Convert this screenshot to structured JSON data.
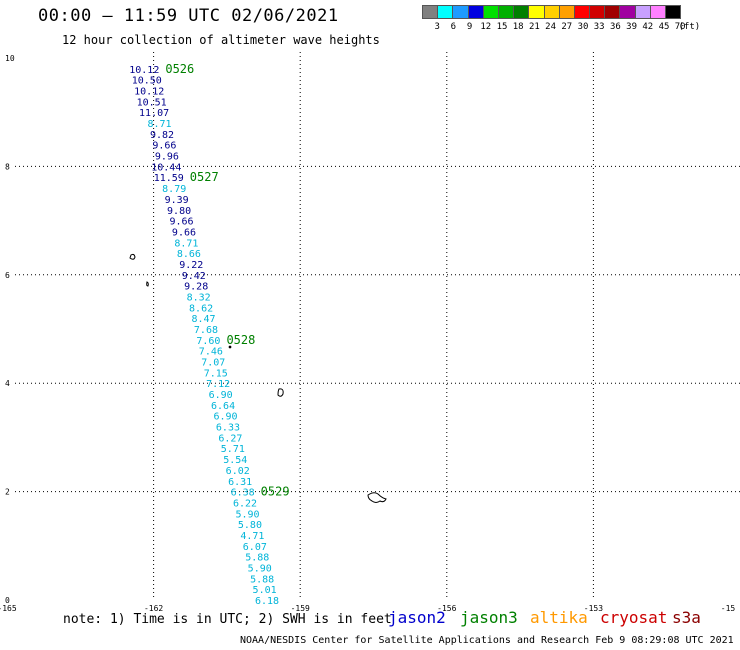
{
  "header": {
    "title": "00:00 – 11:59 UTC 02/06/2021",
    "subtitle": "12 hour collection of altimeter wave heights"
  },
  "colorbar": {
    "colors": [
      "#808080",
      "#00ffff",
      "#1e9bff",
      "#0000e0",
      "#00e000",
      "#00b000",
      "#008000",
      "#ffff00",
      "#ffd000",
      "#ffa000",
      "#ff0000",
      "#d00000",
      "#a00000",
      "#a000a0",
      "#c8a0ff",
      "#ff80ff",
      "#000000"
    ],
    "labels": [
      "3",
      "6",
      "9",
      "12",
      "15",
      "18",
      "21",
      "24",
      "27",
      "30",
      "33",
      "36",
      "39",
      "42",
      "45",
      "70",
      "(ft)"
    ]
  },
  "axes": {
    "x_ticks": [
      "-165",
      "-162",
      "-159",
      "-156",
      "-153",
      "-15"
    ],
    "y_ticks": [
      "0",
      "2",
      "4",
      "6",
      "8",
      "10"
    ]
  },
  "track": {
    "color_dark": "#00008b",
    "color_light": "#00b4d8",
    "points": [
      {
        "lon": -161.8,
        "lat": 9.8,
        "swh": "10.12",
        "shade": "dark"
      },
      {
        "lon": -161.75,
        "lat": 9.6,
        "swh": "10.50",
        "shade": "dark"
      },
      {
        "lon": -161.7,
        "lat": 9.4,
        "swh": "10.12",
        "shade": "dark"
      },
      {
        "lon": -161.65,
        "lat": 9.2,
        "swh": "10.51",
        "shade": "dark"
      },
      {
        "lon": -161.6,
        "lat": 9.0,
        "swh": "11.07",
        "shade": "dark"
      },
      {
        "lon": -161.55,
        "lat": 8.8,
        "swh": "8.71",
        "shade": "light"
      },
      {
        "lon": -161.5,
        "lat": 8.6,
        "swh": "9.82",
        "shade": "dark"
      },
      {
        "lon": -161.45,
        "lat": 8.4,
        "swh": "9.66",
        "shade": "dark"
      },
      {
        "lon": -161.4,
        "lat": 8.2,
        "swh": "9.96",
        "shade": "dark"
      },
      {
        "lon": -161.35,
        "lat": 8.0,
        "swh": "10.44",
        "shade": "dark"
      },
      {
        "lon": -161.3,
        "lat": 7.8,
        "swh": "11.59",
        "shade": "dark"
      },
      {
        "lon": -161.25,
        "lat": 7.6,
        "swh": "8.79",
        "shade": "light"
      },
      {
        "lon": -161.2,
        "lat": 7.4,
        "swh": "9.39",
        "shade": "dark"
      },
      {
        "lon": -161.15,
        "lat": 7.2,
        "swh": "9.80",
        "shade": "dark"
      },
      {
        "lon": -161.1,
        "lat": 7.0,
        "swh": "9.66",
        "shade": "dark"
      },
      {
        "lon": -161.05,
        "lat": 6.8,
        "swh": "9.66",
        "shade": "dark"
      },
      {
        "lon": -161.0,
        "lat": 6.6,
        "swh": "8.71",
        "shade": "light"
      },
      {
        "lon": -160.95,
        "lat": 6.4,
        "swh": "8.66",
        "shade": "light"
      },
      {
        "lon": -160.9,
        "lat": 6.2,
        "swh": "9.22",
        "shade": "dark"
      },
      {
        "lon": -160.85,
        "lat": 6.0,
        "swh": "9.42",
        "shade": "dark"
      },
      {
        "lon": -160.8,
        "lat": 5.8,
        "swh": "9.28",
        "shade": "dark"
      },
      {
        "lon": -160.75,
        "lat": 5.6,
        "swh": "8.32",
        "shade": "light"
      },
      {
        "lon": -160.7,
        "lat": 5.4,
        "swh": "8.62",
        "shade": "light"
      },
      {
        "lon": -160.65,
        "lat": 5.2,
        "swh": "8.47",
        "shade": "light"
      },
      {
        "lon": -160.6,
        "lat": 5.0,
        "swh": "7.68",
        "shade": "light"
      },
      {
        "lon": -160.55,
        "lat": 4.8,
        "swh": "7.60",
        "shade": "light"
      },
      {
        "lon": -160.5,
        "lat": 4.6,
        "swh": "7.46",
        "shade": "light"
      },
      {
        "lon": -160.45,
        "lat": 4.4,
        "swh": "7.07",
        "shade": "light"
      },
      {
        "lon": -160.4,
        "lat": 4.2,
        "swh": "7.15",
        "shade": "light"
      },
      {
        "lon": -160.35,
        "lat": 4.0,
        "swh": "7.12",
        "shade": "light"
      },
      {
        "lon": -160.3,
        "lat": 3.8,
        "swh": "6.90",
        "shade": "light"
      },
      {
        "lon": -160.25,
        "lat": 3.6,
        "swh": "6.64",
        "shade": "light"
      },
      {
        "lon": -160.2,
        "lat": 3.4,
        "swh": "6.90",
        "shade": "light"
      },
      {
        "lon": -160.15,
        "lat": 3.2,
        "swh": "6.33",
        "shade": "light"
      },
      {
        "lon": -160.1,
        "lat": 3.0,
        "swh": "6.27",
        "shade": "light"
      },
      {
        "lon": -160.05,
        "lat": 2.8,
        "swh": "5.71",
        "shade": "light"
      },
      {
        "lon": -160.0,
        "lat": 2.6,
        "swh": "5.54",
        "shade": "light"
      },
      {
        "lon": -159.95,
        "lat": 2.4,
        "swh": "6.02",
        "shade": "light"
      },
      {
        "lon": -159.9,
        "lat": 2.2,
        "swh": "6.31",
        "shade": "light"
      },
      {
        "lon": -159.85,
        "lat": 2.0,
        "swh": "6.38",
        "shade": "light"
      },
      {
        "lon": -159.8,
        "lat": 1.8,
        "swh": "6.22",
        "shade": "light"
      },
      {
        "lon": -159.75,
        "lat": 1.6,
        "swh": "5.90",
        "shade": "light"
      },
      {
        "lon": -159.7,
        "lat": 1.4,
        "swh": "5.80",
        "shade": "light"
      },
      {
        "lon": -159.65,
        "lat": 1.2,
        "swh": "4.71",
        "shade": "light"
      },
      {
        "lon": -159.6,
        "lat": 1.0,
        "swh": "6.07",
        "shade": "light"
      },
      {
        "lon": -159.55,
        "lat": 0.8,
        "swh": "5.88",
        "shade": "light"
      },
      {
        "lon": -159.5,
        "lat": 0.6,
        "swh": "5.90",
        "shade": "light"
      },
      {
        "lon": -159.45,
        "lat": 0.4,
        "swh": "5.88",
        "shade": "light"
      },
      {
        "lon": -159.4,
        "lat": 0.2,
        "swh": "5.01",
        "shade": "light"
      },
      {
        "lon": -159.35,
        "lat": 0.0,
        "swh": "6.18",
        "shade": "light"
      }
    ],
    "time_labels": [
      {
        "lon": -161.8,
        "lat": 9.8,
        "text": "0526"
      },
      {
        "lon": -161.3,
        "lat": 7.8,
        "text": "0527"
      },
      {
        "lon": -160.55,
        "lat": 4.8,
        "text": "0528"
      },
      {
        "lon": -159.85,
        "lat": 2.0,
        "text": "0529"
      }
    ]
  },
  "footer": {
    "note": "note: 1) Time is in UTC; 2) SWH is in feet",
    "satellites": [
      {
        "name": "jason2",
        "color": "#0000cc"
      },
      {
        "name": "jason3",
        "color": "#008000"
      },
      {
        "name": "altika",
        "color": "#ff9900"
      },
      {
        "name": "cryosat",
        "color": "#cc0000"
      },
      {
        "name": "s3a",
        "color": "#8b0000"
      }
    ],
    "credit": "NOAA/NESDIS Center for Satellite Applications and Research   Feb  9 08:29:08 UTC 2021"
  }
}
